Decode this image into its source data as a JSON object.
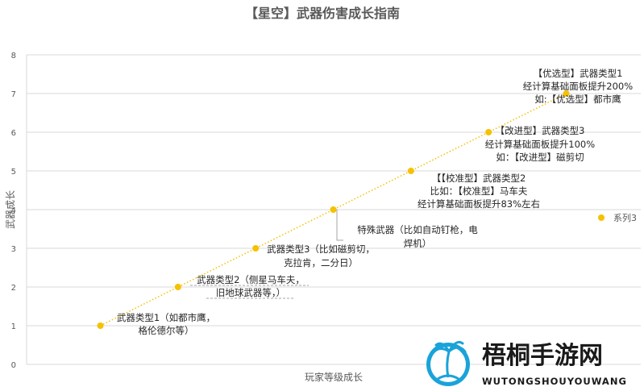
{
  "chart_data": {
    "type": "scatter",
    "title": "【星空】武器伤害成长指南",
    "xlabel": "玩家等级成长",
    "ylabel": "武器成长",
    "ylim": [
      0,
      8
    ],
    "yticks": [
      "0",
      "1",
      "2",
      "3",
      "4",
      "5",
      "6",
      "7",
      "8"
    ],
    "grid": true,
    "trendline": "dotted-linear",
    "series": [
      {
        "name": "系列3",
        "color": "#f5c100",
        "x": [
          1,
          2,
          3,
          4,
          5,
          6,
          7
        ],
        "y": [
          1,
          2,
          3,
          4,
          5,
          6,
          7
        ]
      }
    ],
    "legend": {
      "position": "right",
      "label": "系列3"
    },
    "annotations": [
      {
        "lines": [
          "武器类型1（如都市鹰，",
          "格伦德尔等）"
        ]
      },
      {
        "lines": [
          "武器类型2（侧星马车夫，",
          "旧地球武器等，）"
        ]
      },
      {
        "lines": [
          "武器类型3（比如磁剪切，",
          "克拉肯，二分日）"
        ]
      },
      {
        "lines": [
          "特殊武器（比如自动钉枪，电",
          "焊机）"
        ]
      },
      {
        "lines": [
          "【【校准型】武器类型2",
          "比如：【校准型】马车夫",
          "经计算基础面板提升83%左右"
        ]
      },
      {
        "lines": [
          "【改进型】武器类型3",
          "经计算基础面板提升100%",
          "如：【改进型】磁剪切"
        ]
      },
      {
        "lines": [
          "【优选型】武器类型1",
          "经计算基础面板提升200%",
          "如:【优选型】都市鹰"
        ]
      }
    ]
  },
  "watermark": {
    "title": "梧桐手游网",
    "subtitle": "WUTONGSHOUYOUWANG",
    "logo": "palm-tree-logo-icon"
  }
}
